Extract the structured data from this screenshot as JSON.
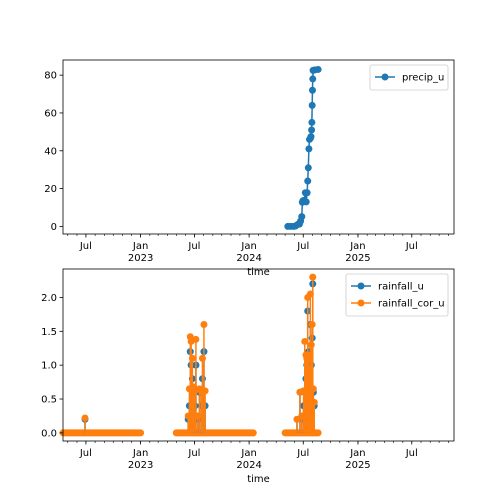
{
  "chart_data": [
    {
      "type": "line",
      "xlabel": "time",
      "ylabel": "",
      "ylim": [
        -4,
        88
      ],
      "yticks": [
        0,
        20,
        40,
        60,
        80
      ],
      "xlim": [
        "2022-04-15",
        "2025-11-20"
      ],
      "grid": false,
      "legend_position": "top-right",
      "marker": "circle",
      "series": [
        {
          "name": "precip_u",
          "color": "#1f77b4",
          "points": [
            [
              "2024-05-10",
              0
            ],
            [
              "2024-05-20",
              0
            ],
            [
              "2024-05-30",
              0
            ],
            [
              "2024-06-05",
              0.2
            ],
            [
              "2024-06-12",
              1.0
            ],
            [
              "2024-06-18",
              1.2
            ],
            [
              "2024-06-22",
              2.8
            ],
            [
              "2024-06-26",
              5.2
            ],
            [
              "2024-06-28",
              12.8
            ],
            [
              "2024-06-30",
              13.6
            ],
            [
              "2024-07-04",
              13.8
            ],
            [
              "2024-07-08",
              17.8
            ],
            [
              "2024-07-11",
              13.0
            ],
            [
              "2024-07-14",
              17.8
            ],
            [
              "2024-07-16",
              24
            ],
            [
              "2024-07-18",
              31
            ],
            [
              "2024-07-20",
              41
            ],
            [
              "2024-07-22",
              46
            ],
            [
              "2024-07-25",
              46.6
            ],
            [
              "2024-07-27",
              47.5
            ],
            [
              "2024-07-29",
              51
            ],
            [
              "2024-07-30",
              55
            ],
            [
              "2024-07-31",
              64
            ],
            [
              "2024-08-01",
              72
            ],
            [
              "2024-08-02",
              78
            ],
            [
              "2024-08-03",
              82.5
            ],
            [
              "2024-08-10",
              82.8
            ],
            [
              "2024-08-20",
              83.0
            ]
          ]
        }
      ],
      "x_major_ticks": [
        {
          "date": "2022-07-01",
          "label": "Jul",
          "sub": ""
        },
        {
          "date": "2023-01-01",
          "label": "Jan",
          "sub": "2023"
        },
        {
          "date": "2023-07-01",
          "label": "Jul",
          "sub": ""
        },
        {
          "date": "2024-01-01",
          "label": "Jan",
          "sub": "2024"
        },
        {
          "date": "2024-07-01",
          "label": "Jul",
          "sub": ""
        },
        {
          "date": "2025-01-01",
          "label": "Jan",
          "sub": "2025"
        },
        {
          "date": "2025-07-01",
          "label": "Jul",
          "sub": ""
        }
      ]
    },
    {
      "type": "line",
      "xlabel": "time",
      "ylabel": "",
      "ylim": [
        -0.12,
        2.42
      ],
      "yticks": [
        0.0,
        0.5,
        1.0,
        1.5,
        2.0
      ],
      "ytick_labels": [
        "0.0",
        "0.5",
        "1.0",
        "1.5",
        "2.0"
      ],
      "xlim": [
        "2022-04-15",
        "2025-11-20"
      ],
      "grid": false,
      "legend_position": "top-right",
      "marker": "circle",
      "zero_segments": [
        [
          "2022-04-15",
          "2023-01-01"
        ],
        [
          "2023-05-01",
          "2024-01-15"
        ],
        [
          "2024-05-01",
          "2024-08-20"
        ]
      ],
      "series": [
        {
          "name": "rainfall_u",
          "color": "#1f77b4",
          "points": [
            [
              "2022-06-28",
              0.2
            ],
            [
              "2023-06-10",
              0.2
            ],
            [
              "2023-06-14",
              0.4
            ],
            [
              "2023-06-17",
              1.2
            ],
            [
              "2023-06-20",
              1.0
            ],
            [
              "2023-06-24",
              0.8
            ],
            [
              "2023-06-28",
              0.6
            ],
            [
              "2023-07-03",
              0.4
            ],
            [
              "2023-07-06",
              1.0
            ],
            [
              "2023-07-12",
              0.2
            ],
            [
              "2023-07-18",
              0.6
            ],
            [
              "2023-07-24",
              0.4
            ],
            [
              "2023-07-28",
              0.8
            ],
            [
              "2023-08-02",
              1.2
            ],
            [
              "2023-08-06",
              0.4
            ],
            [
              "2024-06-10",
              0.2
            ],
            [
              "2024-06-20",
              0.6
            ],
            [
              "2024-06-26",
              0.2
            ],
            [
              "2024-07-02",
              0.4
            ],
            [
              "2024-07-06",
              0.6
            ],
            [
              "2024-07-10",
              0.8
            ],
            [
              "2024-07-13",
              1.0
            ],
            [
              "2024-07-16",
              1.8
            ],
            [
              "2024-07-19",
              1.2
            ],
            [
              "2024-07-22",
              0.8
            ],
            [
              "2024-07-25",
              1.6
            ],
            [
              "2024-07-28",
              1.0
            ],
            [
              "2024-07-31",
              1.4
            ],
            [
              "2024-08-02",
              2.2
            ],
            [
              "2024-08-04",
              0.6
            ],
            [
              "2024-08-07",
              0.4
            ]
          ]
        },
        {
          "name": "rainfall_cor_u",
          "color": "#ff7f0e",
          "points": [
            [
              "2022-06-28",
              0.22
            ],
            [
              "2023-06-10",
              0.25
            ],
            [
              "2023-06-14",
              0.65
            ],
            [
              "2023-06-17",
              1.42
            ],
            [
              "2023-06-20",
              1.35
            ],
            [
              "2023-06-24",
              1.1
            ],
            [
              "2023-06-28",
              0.68
            ],
            [
              "2023-07-03",
              0.62
            ],
            [
              "2023-07-06",
              1.38
            ],
            [
              "2023-07-12",
              0.25
            ],
            [
              "2023-07-18",
              0.65
            ],
            [
              "2023-07-24",
              0.62
            ],
            [
              "2023-07-28",
              1.1
            ],
            [
              "2023-08-02",
              1.6
            ],
            [
              "2023-08-06",
              0.62
            ],
            [
              "2024-06-10",
              0.2
            ],
            [
              "2024-06-20",
              0.6
            ],
            [
              "2024-06-26",
              0.25
            ],
            [
              "2024-07-02",
              0.62
            ],
            [
              "2024-07-06",
              1.35
            ],
            [
              "2024-07-10",
              1.15
            ],
            [
              "2024-07-13",
              1.1
            ],
            [
              "2024-07-16",
              2.0
            ],
            [
              "2024-07-19",
              1.15
            ],
            [
              "2024-07-22",
              0.95
            ],
            [
              "2024-07-25",
              2.05
            ],
            [
              "2024-07-28",
              1.3
            ],
            [
              "2024-07-31",
              1.6
            ],
            [
              "2024-08-02",
              2.3
            ],
            [
              "2024-08-04",
              0.65
            ],
            [
              "2024-08-07",
              0.45
            ]
          ]
        }
      ],
      "x_major_ticks": [
        {
          "date": "2022-07-01",
          "label": "Jul",
          "sub": ""
        },
        {
          "date": "2023-01-01",
          "label": "Jan",
          "sub": "2023"
        },
        {
          "date": "2023-07-01",
          "label": "Jul",
          "sub": ""
        },
        {
          "date": "2024-01-01",
          "label": "Jan",
          "sub": "2024"
        },
        {
          "date": "2024-07-01",
          "label": "Jul",
          "sub": ""
        },
        {
          "date": "2025-01-01",
          "label": "Jan",
          "sub": "2025"
        },
        {
          "date": "2025-07-01",
          "label": "Jul",
          "sub": ""
        }
      ]
    }
  ]
}
